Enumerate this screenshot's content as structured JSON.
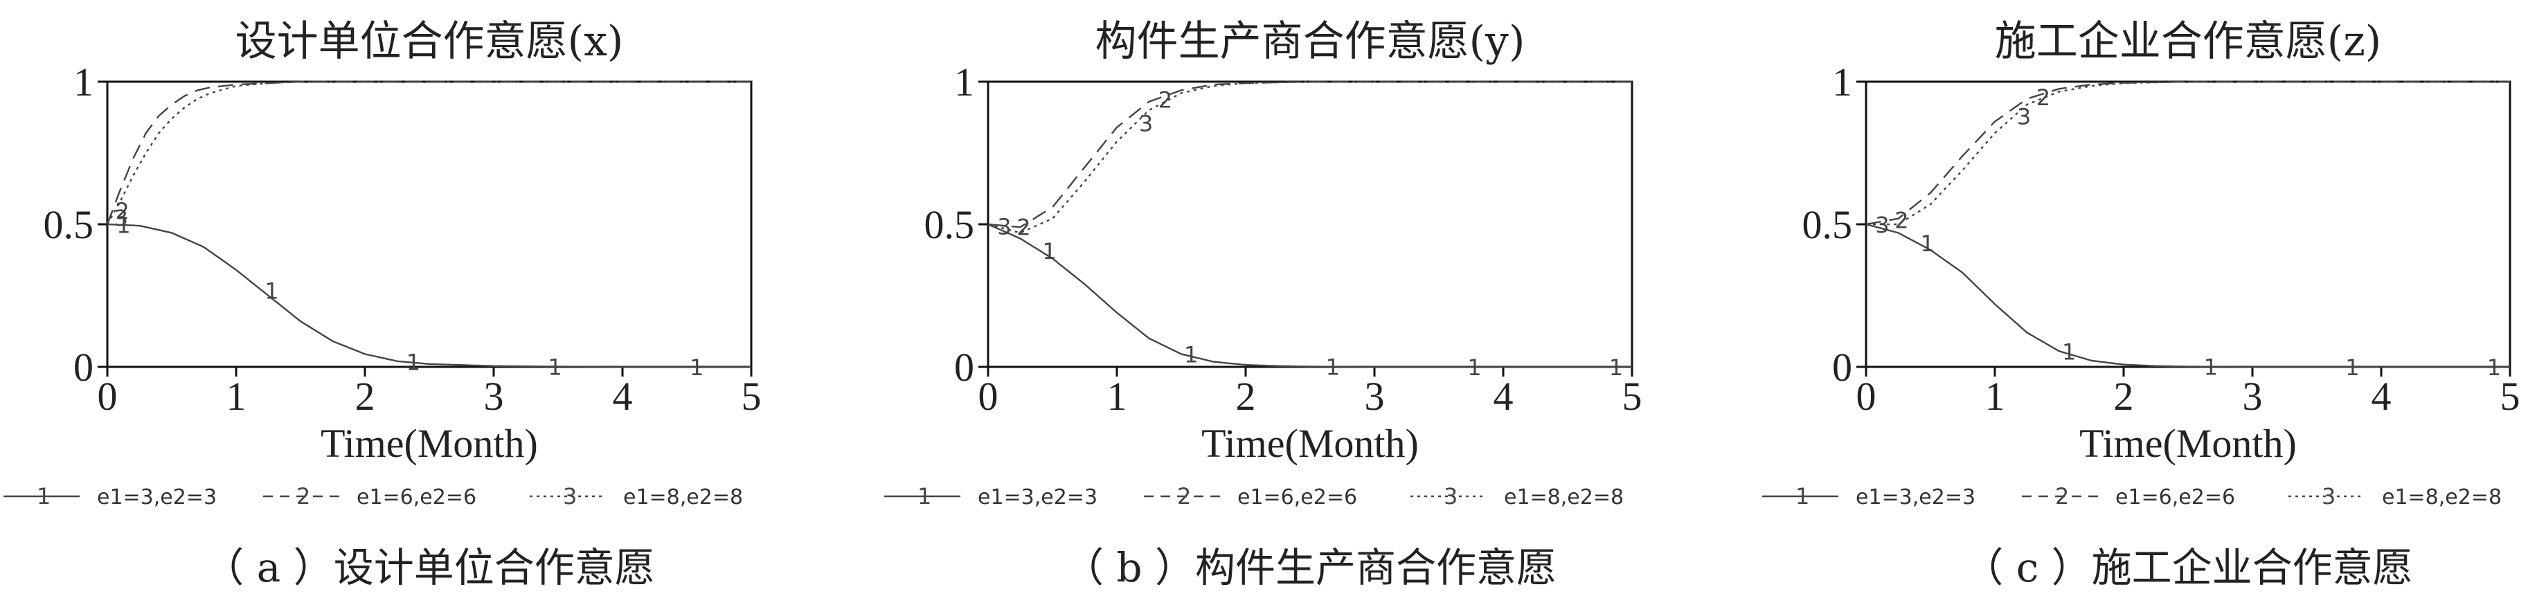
{
  "chart_data": [
    {
      "type": "line",
      "title": "设计单位合作意愿(x)",
      "xlabel": "Time(Month)",
      "ylabel": "",
      "xlim": [
        0,
        5
      ],
      "ylim": [
        0,
        1
      ],
      "xticks": [
        "0",
        "1",
        "2",
        "3",
        "4",
        "5"
      ],
      "yticks": [
        "0",
        "0.5",
        "1"
      ],
      "series": [
        {
          "name": "e1=3,e2=3",
          "marker": "1",
          "style": "solid",
          "x": [
            0,
            0.25,
            0.5,
            0.75,
            1,
            1.25,
            1.5,
            1.75,
            2,
            2.25,
            2.5,
            3,
            3.5,
            4,
            4.5,
            5
          ],
          "y": [
            0.5,
            0.495,
            0.47,
            0.42,
            0.34,
            0.25,
            0.16,
            0.09,
            0.045,
            0.02,
            0.01,
            0.003,
            0.001,
            0,
            0,
            0
          ]
        },
        {
          "name": "e1=6,e2=6",
          "marker": "2",
          "style": "dashed",
          "x": [
            0,
            0.1,
            0.2,
            0.3,
            0.4,
            0.5,
            0.6,
            0.7,
            0.8,
            1,
            1.25,
            1.5,
            2,
            3,
            4,
            5
          ],
          "y": [
            0.5,
            0.62,
            0.73,
            0.82,
            0.88,
            0.92,
            0.95,
            0.97,
            0.98,
            0.99,
            0.995,
            1,
            1,
            1,
            1,
            1
          ]
        },
        {
          "name": "e1=8,e2=8",
          "marker": "3",
          "style": "dotted",
          "x": [
            0,
            0.1,
            0.2,
            0.3,
            0.4,
            0.5,
            0.6,
            0.7,
            0.8,
            1,
            1.25,
            1.5,
            2,
            3,
            4,
            5
          ],
          "y": [
            0.5,
            0.58,
            0.67,
            0.75,
            0.82,
            0.87,
            0.91,
            0.94,
            0.96,
            0.985,
            0.995,
            1,
            1,
            1,
            1,
            1
          ]
        }
      ],
      "caption": "（ a ）设计单位合作意愿"
    },
    {
      "type": "line",
      "title": "构件生产商合作意愿(y)",
      "xlabel": "Time(Month)",
      "ylabel": "",
      "xlim": [
        0,
        5
      ],
      "ylim": [
        0,
        1
      ],
      "xticks": [
        "0",
        "1",
        "2",
        "3",
        "4",
        "5"
      ],
      "yticks": [
        "0",
        "0.5",
        "1"
      ],
      "series": [
        {
          "name": "e1=3,e2=3",
          "marker": "1",
          "style": "solid",
          "x": [
            0,
            0.25,
            0.5,
            0.75,
            1,
            1.25,
            1.5,
            1.75,
            2,
            2.25,
            2.5,
            3,
            3.5,
            4,
            4.5,
            5
          ],
          "y": [
            0.5,
            0.45,
            0.38,
            0.29,
            0.19,
            0.1,
            0.045,
            0.018,
            0.007,
            0.003,
            0.001,
            0,
            0,
            0,
            0,
            0
          ]
        },
        {
          "name": "e1=6,e2=6",
          "marker": "2",
          "style": "dashed",
          "x": [
            0,
            0.25,
            0.5,
            0.75,
            1,
            1.25,
            1.5,
            1.75,
            2,
            2.5,
            3,
            3.5,
            4,
            5
          ],
          "y": [
            0.5,
            0.49,
            0.56,
            0.7,
            0.84,
            0.93,
            0.97,
            0.99,
            0.995,
            1,
            1,
            1,
            1,
            1
          ]
        },
        {
          "name": "e1=8,e2=8",
          "marker": "3",
          "style": "dotted",
          "x": [
            0,
            0.25,
            0.5,
            0.75,
            1,
            1.25,
            1.5,
            1.75,
            2,
            2.5,
            3,
            3.5,
            4,
            5
          ],
          "y": [
            0.5,
            0.47,
            0.52,
            0.65,
            0.79,
            0.9,
            0.96,
            0.985,
            0.995,
            1,
            1,
            1,
            1,
            1
          ]
        }
      ],
      "caption": "（ b ）构件生产商合作意愿"
    },
    {
      "type": "line",
      "title": "施工企业合作意愿(z)",
      "xlabel": "Time(Month)",
      "ylabel": "",
      "xlim": [
        0,
        5
      ],
      "ylim": [
        0,
        1
      ],
      "xticks": [
        "0",
        "1",
        "2",
        "3",
        "4",
        "5"
      ],
      "yticks": [
        "0",
        "0.5",
        "1"
      ],
      "series": [
        {
          "name": "e1=3,e2=3",
          "marker": "1",
          "style": "solid",
          "x": [
            0,
            0.25,
            0.5,
            0.75,
            1,
            1.25,
            1.5,
            1.75,
            2,
            2.25,
            2.5,
            3,
            3.5,
            4,
            4.5,
            5
          ],
          "y": [
            0.5,
            0.47,
            0.41,
            0.33,
            0.22,
            0.12,
            0.055,
            0.022,
            0.008,
            0.003,
            0.001,
            0,
            0,
            0,
            0,
            0
          ]
        },
        {
          "name": "e1=6,e2=6",
          "marker": "2",
          "style": "dashed",
          "x": [
            0,
            0.25,
            0.5,
            0.75,
            1,
            1.25,
            1.5,
            1.75,
            2,
            2.5,
            3,
            3.5,
            4,
            5
          ],
          "y": [
            0.5,
            0.52,
            0.61,
            0.74,
            0.86,
            0.94,
            0.975,
            0.99,
            0.996,
            1,
            1,
            1,
            1,
            1
          ]
        },
        {
          "name": "e1=8,e2=8",
          "marker": "3",
          "style": "dotted",
          "x": [
            0,
            0.25,
            0.5,
            0.75,
            1,
            1.25,
            1.5,
            1.75,
            2,
            2.5,
            3,
            3.5,
            4,
            5
          ],
          "y": [
            0.5,
            0.5,
            0.57,
            0.69,
            0.82,
            0.92,
            0.965,
            0.985,
            0.995,
            1,
            1,
            1,
            1,
            1
          ]
        }
      ],
      "caption": "（ c ）施工企业合作意愿"
    }
  ],
  "colors": {
    "line": "#444444",
    "axis": "#111111",
    "text": "#222222"
  }
}
